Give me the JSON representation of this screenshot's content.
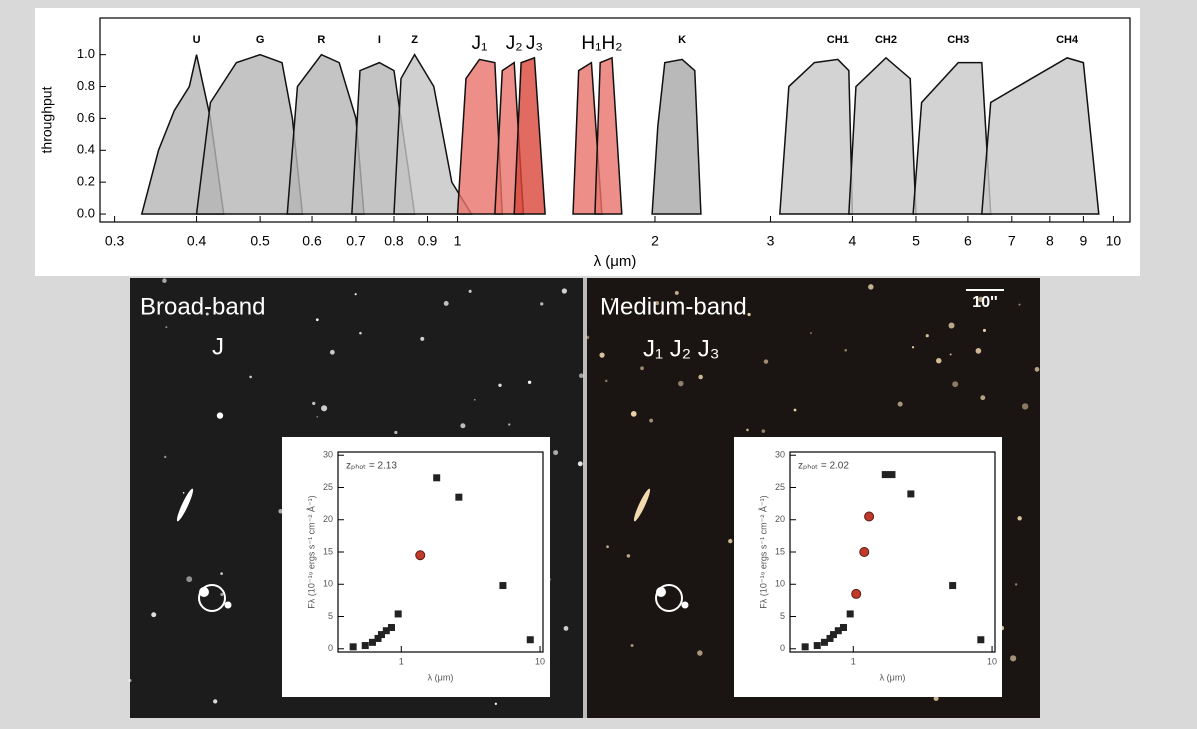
{
  "chart_data": [
    {
      "type": "area",
      "xlabel": "λ (μm)",
      "ylabel": "throughput",
      "xscale": "log",
      "xlim": [
        0.285,
        10.6
      ],
      "ylim": [
        -0.05,
        1.23
      ],
      "xticks": [
        0.3,
        0.4,
        0.5,
        0.6,
        0.7,
        0.8,
        0.9,
        1,
        2,
        3,
        4,
        5,
        6,
        7,
        8,
        9,
        10
      ],
      "yticks": [
        {
          "value": 0,
          "label": "0.0"
        },
        0.2,
        0.4,
        0.6,
        0.8,
        {
          "value": 1,
          "label": "1.0"
        }
      ],
      "series": [
        {
          "name": "U",
          "color": "#b5b5b5",
          "x": [
            0.33,
            0.35,
            0.37,
            0.39,
            0.4,
            0.42,
            0.44
          ],
          "values": [
            0,
            0.4,
            0.65,
            0.8,
            1.0,
            0.6,
            0
          ]
        },
        {
          "name": "G",
          "color": "#b5b5b5",
          "x": [
            0.4,
            0.42,
            0.46,
            0.5,
            0.54,
            0.56,
            0.58
          ],
          "values": [
            0,
            0.7,
            0.95,
            1.0,
            0.95,
            0.6,
            0
          ]
        },
        {
          "name": "R",
          "color": "#b5b5b5",
          "x": [
            0.55,
            0.57,
            0.62,
            0.66,
            0.7,
            0.72
          ],
          "values": [
            0,
            0.8,
            1.0,
            0.95,
            0.6,
            0
          ]
        },
        {
          "name": "I",
          "color": "#b5b5b5",
          "x": [
            0.69,
            0.71,
            0.76,
            0.8,
            0.84,
            0.86
          ],
          "values": [
            0,
            0.9,
            0.95,
            0.9,
            0.3,
            0
          ]
        },
        {
          "name": "Z",
          "color": "#c4c4c4",
          "x": [
            0.8,
            0.82,
            0.86,
            0.92,
            0.98,
            1.05
          ],
          "values": [
            0,
            0.85,
            1.0,
            0.8,
            0.2,
            0
          ]
        },
        {
          "name": "J₁",
          "color": "#e8736a",
          "x": [
            1.0,
            1.03,
            1.08,
            1.14,
            1.17
          ],
          "values": [
            0,
            0.85,
            0.97,
            0.95,
            0
          ]
        },
        {
          "name": "J₂",
          "color": "#e8736a",
          "x": [
            1.14,
            1.17,
            1.22,
            1.26
          ],
          "values": [
            0,
            0.9,
            0.95,
            0
          ]
        },
        {
          "name": "J₃",
          "color": "#d9453a",
          "x": [
            1.22,
            1.25,
            1.31,
            1.36
          ],
          "values": [
            0,
            0.95,
            0.98,
            0
          ]
        },
        {
          "name": "H₁",
          "color": "#e8736a",
          "x": [
            1.5,
            1.53,
            1.6,
            1.66
          ],
          "values": [
            0,
            0.9,
            0.95,
            0
          ]
        },
        {
          "name": "H₂",
          "color": "#e8736a",
          "x": [
            1.62,
            1.65,
            1.72,
            1.78
          ],
          "values": [
            0,
            0.95,
            0.98,
            0
          ]
        },
        {
          "name": "K",
          "color": "#a8a8a8",
          "x": [
            1.98,
            2.02,
            2.07,
            2.2,
            2.3,
            2.35
          ],
          "values": [
            0,
            0.55,
            0.95,
            0.97,
            0.9,
            0
          ]
        },
        {
          "name": "CH1",
          "color": "#c8c8c8",
          "x": [
            3.1,
            3.2,
            3.5,
            3.8,
            3.95,
            4.0
          ],
          "values": [
            0,
            0.8,
            0.95,
            0.97,
            0.9,
            0
          ]
        },
        {
          "name": "CH2",
          "color": "#c8c8c8",
          "x": [
            3.95,
            4.05,
            4.5,
            4.9,
            5.0
          ],
          "values": [
            0,
            0.8,
            0.98,
            0.85,
            0
          ]
        },
        {
          "name": "CH3",
          "color": "#c8c8c8",
          "x": [
            4.95,
            5.1,
            5.8,
            6.3,
            6.5
          ],
          "values": [
            0,
            0.7,
            0.95,
            0.95,
            0
          ]
        },
        {
          "name": "CH4",
          "color": "#c8c8c8",
          "x": [
            6.3,
            6.5,
            7.5,
            8.5,
            9.0,
            9.5
          ],
          "values": [
            0,
            0.7,
            0.85,
            0.98,
            0.95,
            0
          ]
        }
      ]
    },
    {
      "type": "scatter",
      "xlabel": "λ (μm)",
      "ylabel": "Fλ (10⁻¹⁹ ergs s⁻¹ cm⁻² Å⁻¹)",
      "annotation": "zₚₕₒₜ = 2.13",
      "xscale": "log",
      "xlim": [
        0.35,
        10.5
      ],
      "ylim": [
        -0.5,
        30.5
      ],
      "xticks": [
        1,
        10
      ],
      "yticks": [
        0,
        5,
        10,
        15,
        20,
        25,
        30
      ],
      "series": [
        {
          "color": "#222222",
          "x": [
            0.45,
            0.55,
            0.62,
            0.68,
            0.72,
            0.78,
            0.85,
            0.95,
            1.8,
            2.6,
            5.4,
            8.5
          ],
          "values": [
            0.3,
            0.5,
            1,
            1.6,
            2.2,
            2.8,
            3.3,
            5.4,
            26.5,
            23.5,
            9.8,
            1.4
          ]
        },
        {
          "color": "#c0392b",
          "x": [
            1.37
          ],
          "values": [
            14.5
          ]
        }
      ]
    },
    {
      "type": "scatter",
      "xlabel": "λ (μm)",
      "ylabel": "Fλ (10⁻¹⁹ ergs s⁻¹ cm⁻² Å⁻¹)",
      "annotation": "zₚₕₒₜ = 2.02",
      "xscale": "log",
      "xlim": [
        0.35,
        10.5
      ],
      "ylim": [
        -0.5,
        30.5
      ],
      "xticks": [
        1,
        10
      ],
      "yticks": [
        0,
        5,
        10,
        15,
        20,
        25,
        30
      ],
      "series": [
        {
          "color": "#222222",
          "x": [
            0.45,
            0.55,
            0.62,
            0.68,
            0.72,
            0.78,
            0.85,
            0.95,
            1.7,
            1.9,
            2.6,
            5.2,
            8.3
          ],
          "values": [
            0.3,
            0.5,
            1,
            1.6,
            2.2,
            2.8,
            3.3,
            5.4,
            27,
            27,
            24,
            9.8,
            1.4
          ]
        },
        {
          "color": "#c0392b",
          "x": [
            1.05,
            1.2,
            1.3
          ],
          "values": [
            8.5,
            15,
            20.5
          ]
        }
      ]
    }
  ],
  "panels": [
    {
      "title": "Broad-band",
      "band": "J"
    },
    {
      "title": "Medium-band",
      "band": "J₁ J₂ J₃",
      "scale_bar": "10''"
    }
  ]
}
